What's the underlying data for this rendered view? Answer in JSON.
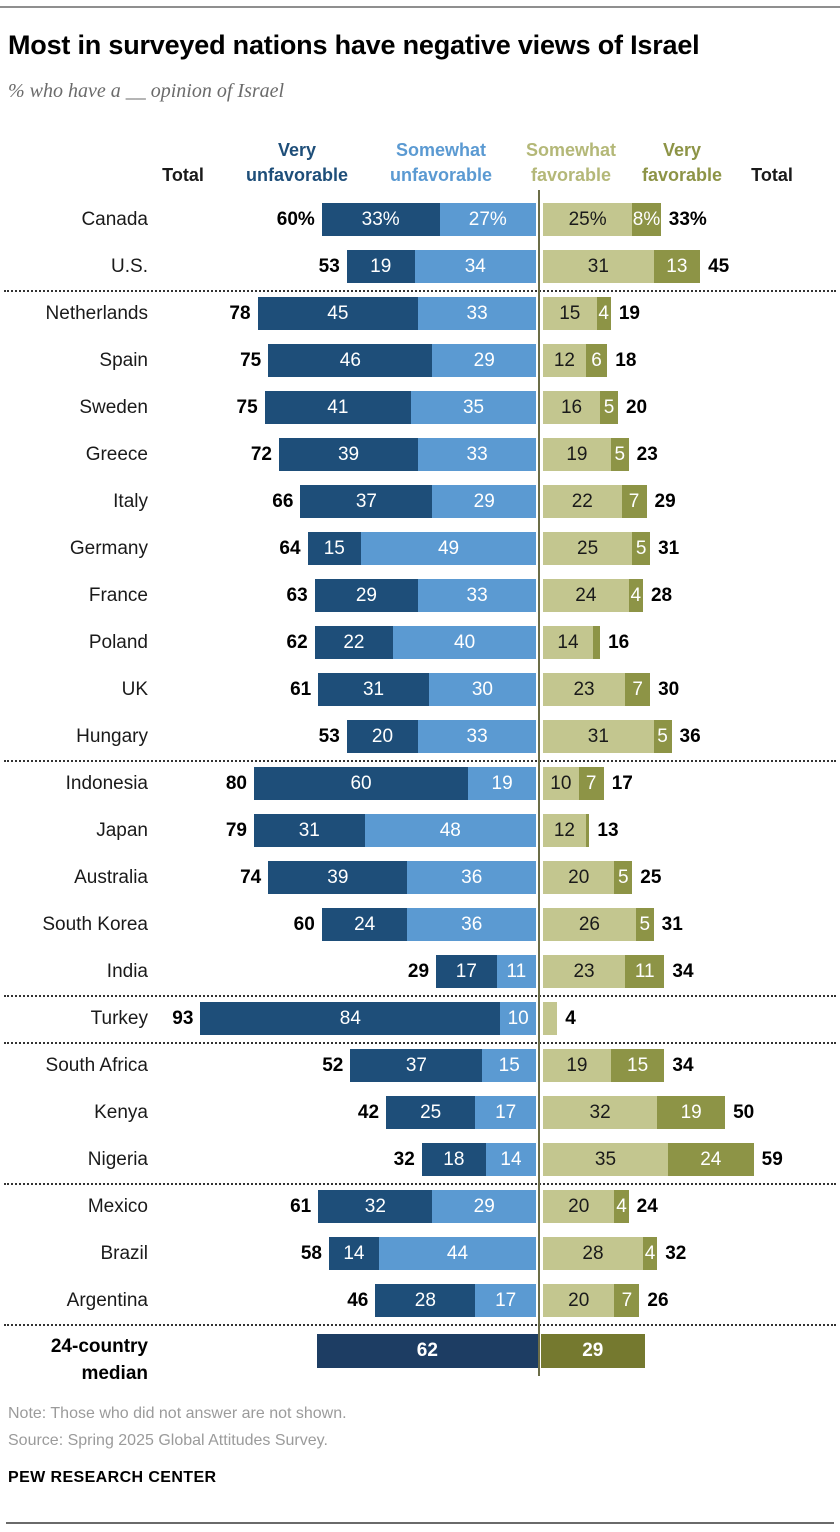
{
  "title": "Most in surveyed nations have negative views of Israel",
  "subtitle": "% who have a __ opinion of Israel",
  "header": {
    "total_left": "Total",
    "very_unfavorable": "Very\nunfavorable",
    "somewhat_unfavorable": "Somewhat\nunfavorable",
    "somewhat_favorable": "Somewhat\nfavorable",
    "very_favorable": "Very\nfavorable",
    "total_right": "Total"
  },
  "footer": {
    "note": "Note: Those who did not answer are not shown.",
    "source": "Source: Spring 2025 Global Attitudes Survey.",
    "brand": "PEW RESEARCH CENTER"
  },
  "chart_data": {
    "type": "bar",
    "subtype": "diverging-stacked-horizontal",
    "units": "%",
    "series_order": [
      "very_unfavorable",
      "somewhat_unfavorable",
      "somewhat_favorable",
      "very_favorable"
    ],
    "colors": {
      "very_unfavorable": "#1e4e79",
      "somewhat_unfavorable": "#5b9ad2",
      "somewhat_favorable": "#c3c68f",
      "very_favorable": "#8d9446",
      "median_unfavorable": "#1d3d63",
      "median_favorable": "#75792f",
      "header_very_unfavorable": "#1e4e79",
      "header_somewhat_unfavorable": "#5b9ad2",
      "header_somewhat_favorable": "#b4b878",
      "header_very_favorable": "#8d9446",
      "center_line": "#6b6d48"
    },
    "rows": [
      {
        "country": "Canada",
        "tl": "60%",
        "vu": 33,
        "su": 27,
        "sf": 25,
        "vf": 8,
        "tr": "33%",
        "vu_label": "33%",
        "su_label": "27%",
        "sf_label": "25%",
        "vf_label": "8%"
      },
      {
        "country": "U.S.",
        "tl": "53",
        "vu": 19,
        "su": 34,
        "sf": 31,
        "vf": 13,
        "tr": "45"
      },
      {
        "country": "Netherlands",
        "sep_above": true,
        "tl": "78",
        "vu": 45,
        "su": 33,
        "sf": 15,
        "vf": 4,
        "tr": "19"
      },
      {
        "country": "Spain",
        "tl": "75",
        "vu": 46,
        "su": 29,
        "sf": 12,
        "vf": 6,
        "tr": "18"
      },
      {
        "country": "Sweden",
        "tl": "75",
        "vu": 41,
        "su": 35,
        "sf": 16,
        "vf": 5,
        "tr": "20"
      },
      {
        "country": "Greece",
        "tl": "72",
        "vu": 39,
        "su": 33,
        "sf": 19,
        "vf": 5,
        "tr": "23"
      },
      {
        "country": "Italy",
        "tl": "66",
        "vu": 37,
        "su": 29,
        "sf": 22,
        "vf": 7,
        "tr": "29"
      },
      {
        "country": "Germany",
        "tl": "64",
        "vu": 15,
        "su": 49,
        "sf": 25,
        "vf": 5,
        "tr": "31"
      },
      {
        "country": "France",
        "tl": "63",
        "vu": 29,
        "su": 33,
        "sf": 24,
        "vf": 4,
        "tr": "28"
      },
      {
        "country": "Poland",
        "tl": "62",
        "vu": 22,
        "su": 40,
        "sf": 14,
        "vf": 2,
        "vf_label": "",
        "tr": "16"
      },
      {
        "country": "UK",
        "tl": "61",
        "vu": 31,
        "su": 30,
        "sf": 23,
        "vf": 7,
        "tr": "30"
      },
      {
        "country": "Hungary",
        "tl": "53",
        "vu": 20,
        "su": 33,
        "sf": 31,
        "vf": 5,
        "tr": "36"
      },
      {
        "country": "Indonesia",
        "sep_above": true,
        "tl": "80",
        "vu": 60,
        "su": 19,
        "sf": 10,
        "vf": 7,
        "tr": "17"
      },
      {
        "country": "Japan",
        "tl": "79",
        "vu": 31,
        "su": 48,
        "sf": 12,
        "vf": 1,
        "vf_label": "",
        "tr": "13"
      },
      {
        "country": "Australia",
        "tl": "74",
        "vu": 39,
        "su": 36,
        "sf": 20,
        "vf": 5,
        "tr": "25"
      },
      {
        "country": "South Korea",
        "tl": "60",
        "vu": 24,
        "su": 36,
        "sf": 26,
        "vf": 5,
        "tr": "31"
      },
      {
        "country": "India",
        "tl": "29",
        "vu": 17,
        "su": 11,
        "sf": 23,
        "vf": 11,
        "tr": "34"
      },
      {
        "country": "Turkey",
        "sep_above": true,
        "tl": "93",
        "vu": 84,
        "su": 10,
        "sf": 4,
        "sf_label": "",
        "vf": 0,
        "tr": "4"
      },
      {
        "country": "South Africa",
        "sep_above": true,
        "tl": "52",
        "vu": 37,
        "su": 15,
        "sf": 19,
        "vf": 15,
        "tr": "34"
      },
      {
        "country": "Kenya",
        "tl": "42",
        "vu": 25,
        "su": 17,
        "sf": 32,
        "vf": 19,
        "tr": "50"
      },
      {
        "country": "Nigeria",
        "tl": "32",
        "vu": 18,
        "su": 14,
        "sf": 35,
        "vf": 24,
        "tr": "59"
      },
      {
        "country": "Mexico",
        "sep_above": true,
        "tl": "61",
        "vu": 32,
        "su": 29,
        "sf": 20,
        "vf": 4,
        "tr": "24"
      },
      {
        "country": "Brazil",
        "tl": "58",
        "vu": 14,
        "su": 44,
        "sf": 28,
        "vf": 4,
        "tr": "32"
      },
      {
        "country": "Argentina",
        "tl": "46",
        "vu": 28,
        "su": 17,
        "sf": 20,
        "vf": 7,
        "tr": "26"
      }
    ],
    "median": {
      "sep_above": true,
      "label": "24-country\nmedian",
      "unfavorable": 62,
      "favorable": 29,
      "unfavorable_label": "62",
      "favorable_label": "29"
    },
    "layout_hints": {
      "axis_center_value": 0,
      "left_direction": "unfavorable",
      "right_direction": "favorable",
      "grid": false,
      "legend_position": "top-as-column-headers"
    }
  }
}
